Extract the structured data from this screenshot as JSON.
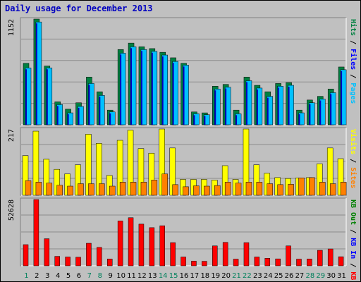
{
  "title": "Daily usage for December 2013",
  "colors": {
    "background": "#c0c0c0",
    "plot_bg": "#c0c0c0",
    "grid": "#8c8c8c",
    "hits": "#008040",
    "files": "#00c0ff",
    "pages": "#00c0ff",
    "visits": "#ffff00",
    "sites": "#ff8000",
    "kbin": "#0000ff",
    "kbout": "#008000",
    "kbf": "#ff0000",
    "weekend_day": "#00805c",
    "weekday": "#000000"
  },
  "chart_data": [
    {
      "type": "bar",
      "panel": "hits-files-pages",
      "ymax_label": "1152",
      "ymax": 1152,
      "legend_placement": "right (vertical)",
      "legend": [
        "Pages",
        "Files",
        "Hits"
      ],
      "categories": [
        "1",
        "2",
        "3",
        "4",
        "5",
        "6",
        "7",
        "8",
        "9",
        "10",
        "11",
        "12",
        "13",
        "14",
        "15",
        "16",
        "17",
        "18",
        "19",
        "20",
        "21",
        "22",
        "23",
        "24",
        "25",
        "26",
        "27",
        "28",
        "29",
        "30",
        "31"
      ],
      "series": [
        {
          "name": "Hits",
          "values": [
            670,
            1152,
            640,
            250,
            170,
            240,
            520,
            360,
            160,
            820,
            890,
            850,
            830,
            790,
            730,
            670,
            140,
            130,
            420,
            440,
            160,
            520,
            430,
            360,
            450,
            460,
            160,
            270,
            310,
            390,
            630
          ]
        },
        {
          "name": "Files",
          "values": [
            620,
            1120,
            620,
            220,
            130,
            200,
            450,
            320,
            140,
            780,
            850,
            820,
            800,
            760,
            690,
            650,
            120,
            110,
            390,
            410,
            120,
            480,
            400,
            310,
            420,
            430,
            130,
            240,
            280,
            350,
            600
          ]
        },
        {
          "name": "Pages",
          "values": [
            620,
            1120,
            620,
            220,
            130,
            200,
            450,
            320,
            140,
            780,
            850,
            820,
            800,
            760,
            690,
            650,
            120,
            110,
            390,
            410,
            120,
            480,
            400,
            310,
            420,
            430,
            130,
            240,
            280,
            350,
            600
          ]
        }
      ]
    },
    {
      "type": "bar",
      "panel": "visits-sites",
      "ymax_label": "217",
      "ymax": 217,
      "legend_placement": "right (vertical)",
      "legend": [
        "Sites",
        "Visits"
      ],
      "categories": [
        "1",
        "2",
        "3",
        "4",
        "5",
        "6",
        "7",
        "8",
        "9",
        "10",
        "11",
        "12",
        "13",
        "14",
        "15",
        "16",
        "17",
        "18",
        "19",
        "20",
        "21",
        "22",
        "23",
        "24",
        "25",
        "26",
        "27",
        "28",
        "29",
        "30",
        "31"
      ],
      "series": [
        {
          "name": "Visits",
          "values": [
            130,
            210,
            118,
            85,
            70,
            100,
            200,
            170,
            65,
            180,
            213,
            153,
            138,
            217,
            155,
            52,
            52,
            52,
            50,
            97,
            52,
            217,
            100,
            72,
            58,
            55,
            57,
            58,
            103,
            155,
            120
          ]
        },
        {
          "name": "Sites",
          "values": [
            48,
            43,
            40,
            33,
            30,
            38,
            38,
            38,
            30,
            43,
            43,
            43,
            50,
            70,
            35,
            28,
            31,
            30,
            32,
            43,
            40,
            43,
            43,
            38,
            35,
            36,
            57,
            58,
            43,
            38,
            43
          ]
        }
      ]
    },
    {
      "type": "bar",
      "panel": "kbytes",
      "ymax_label": "52628",
      "ymax": 52628,
      "legend_placement": "right (vertical)",
      "legend": [
        "KB F",
        "KB In",
        "KB Out"
      ],
      "categories": [
        "1",
        "2",
        "3",
        "4",
        "5",
        "6",
        "7",
        "8",
        "9",
        "10",
        "11",
        "12",
        "13",
        "14",
        "15",
        "16",
        "17",
        "18",
        "19",
        "20",
        "21",
        "22",
        "23",
        "24",
        "25",
        "26",
        "27",
        "28",
        "29",
        "30",
        "31"
      ],
      "series": [
        {
          "name": "KB F",
          "values": [
            16800,
            52628,
            21500,
            7500,
            7000,
            6800,
            17900,
            14600,
            5400,
            35600,
            38200,
            33100,
            30300,
            31800,
            18400,
            7000,
            3700,
            3600,
            15800,
            18600,
            5300,
            18400,
            7000,
            6000,
            5500,
            15800,
            5300,
            5400,
            12300,
            13400,
            7200
          ]
        }
      ]
    }
  ],
  "legend_labels": {
    "panel1": [
      "Pages",
      "Files",
      "Hits"
    ],
    "panel2": [
      "Sites",
      "Visits"
    ],
    "panel3": [
      "KB F",
      "KB In",
      "KB Out"
    ]
  }
}
